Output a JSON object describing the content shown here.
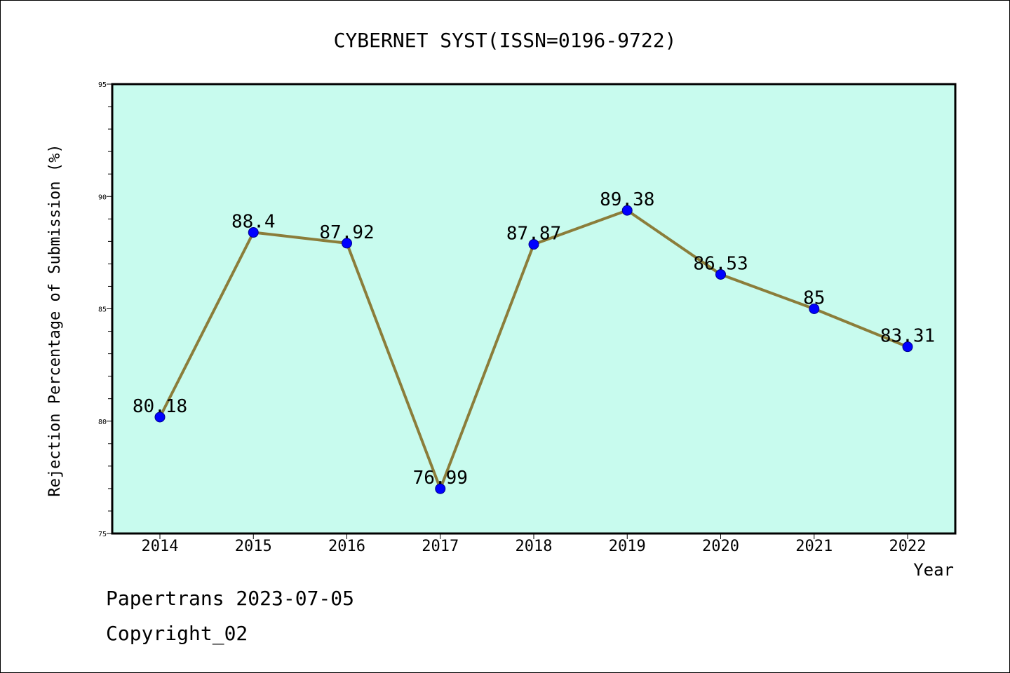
{
  "chart_data": {
    "type": "line",
    "title": "CYBERNET SYST(ISSN=0196-9722)",
    "xlabel": "Year",
    "ylabel": "Rejection Percentage of Submission (%)",
    "categories": [
      "2014",
      "2015",
      "2016",
      "2017",
      "2018",
      "2019",
      "2020",
      "2021",
      "2022"
    ],
    "values": [
      80.18,
      88.4,
      87.92,
      76.99,
      87.87,
      89.38,
      86.53,
      85,
      83.31
    ],
    "data_labels": [
      "80.18",
      "88.4",
      "87.92",
      "76.99",
      "87.87",
      "89.38",
      "86.53",
      "85",
      "83.31"
    ],
    "ylim": [
      75,
      95
    ],
    "yticks": [
      "75",
      "80",
      "85",
      "90",
      "95"
    ],
    "grid": false,
    "colors": {
      "plot_background": "#c8fbee",
      "line": "#8b7d3a",
      "marker": "#0000ff",
      "marker_edge": "#00008b"
    }
  },
  "footer": {
    "line1": "Papertrans 2023-07-05",
    "line2": "Copyright_02"
  }
}
